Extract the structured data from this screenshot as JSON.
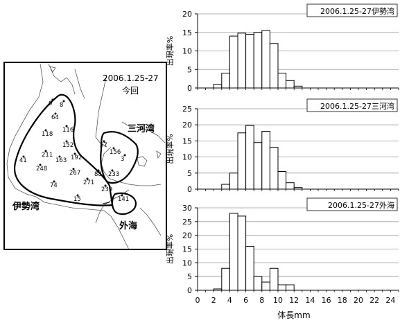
{
  "map": {
    "date_line1": "2006.1.25-27",
    "date_line2": "今回",
    "region_ise": "伊勢湾",
    "region_mikawa": "三河湾",
    "region_open": "外海",
    "stations": [
      {
        "label": "9"
      },
      {
        "label": "8"
      },
      {
        "label": "64"
      },
      {
        "label": "116"
      },
      {
        "label": "118"
      },
      {
        "label": "152"
      },
      {
        "label": "211"
      },
      {
        "label": "192"
      },
      {
        "label": "41"
      },
      {
        "label": "163"
      },
      {
        "label": "248"
      },
      {
        "label": "267"
      },
      {
        "label": "88"
      },
      {
        "label": "271"
      },
      {
        "label": "74"
      },
      {
        "label": "239"
      },
      {
        "label": "15"
      },
      {
        "label": "57"
      },
      {
        "label": "156"
      },
      {
        "label": "3"
      },
      {
        "label": "233"
      },
      {
        "label": "141"
      }
    ]
  },
  "chart_data": [
    {
      "type": "bar",
      "title": "2006.1.25-27伊勢湾",
      "ylabel": "出現率%",
      "xlabel": "",
      "xlim": [
        0,
        25
      ],
      "ylim": [
        0,
        20
      ],
      "yticks": [
        "0",
        "5",
        "10",
        "15",
        "20"
      ],
      "x": [
        2.5,
        3.5,
        4.5,
        5.5,
        6.5,
        7.5,
        8.5,
        9.5,
        10.5,
        11.5,
        12.5
      ],
      "values": [
        1.0,
        4.0,
        14.0,
        14.8,
        14.5,
        15.0,
        15.5,
        12.0,
        4.0,
        2.0,
        0.5
      ]
    },
    {
      "type": "bar",
      "title": "2006.1.25-27三河湾",
      "ylabel": "出現率%",
      "xlabel": "",
      "xlim": [
        0,
        25
      ],
      "ylim": [
        0,
        25
      ],
      "yticks": [
        "0",
        "5",
        "10",
        "15",
        "20",
        "25"
      ],
      "x": [
        3.5,
        4.5,
        5.5,
        6.5,
        7.5,
        8.5,
        9.5,
        10.5,
        11.5,
        12.5
      ],
      "values": [
        1.5,
        5.0,
        17.5,
        19.8,
        14.5,
        18.0,
        13.0,
        5.5,
        2.0,
        0.5
      ]
    },
    {
      "type": "bar",
      "title": "2006.1.25-27外海",
      "ylabel": "出現率%",
      "xlabel": "体長mm",
      "xlim": [
        0,
        25
      ],
      "ylim": [
        0,
        30
      ],
      "yticks": [
        "0",
        "5",
        "10",
        "15",
        "20",
        "25",
        "30"
      ],
      "xticks": [
        "0",
        "2",
        "4",
        "6",
        "8",
        "10",
        "12",
        "14",
        "16",
        "18",
        "20",
        "22",
        "24"
      ],
      "x": [
        2.5,
        3.5,
        4.5,
        5.5,
        6.5,
        7.5,
        8.5,
        9.5,
        10.5,
        11.5
      ],
      "values": [
        0.5,
        8.0,
        28.0,
        27.0,
        16.0,
        5.0,
        3.0,
        8.0,
        2.0,
        2.0
      ]
    }
  ]
}
